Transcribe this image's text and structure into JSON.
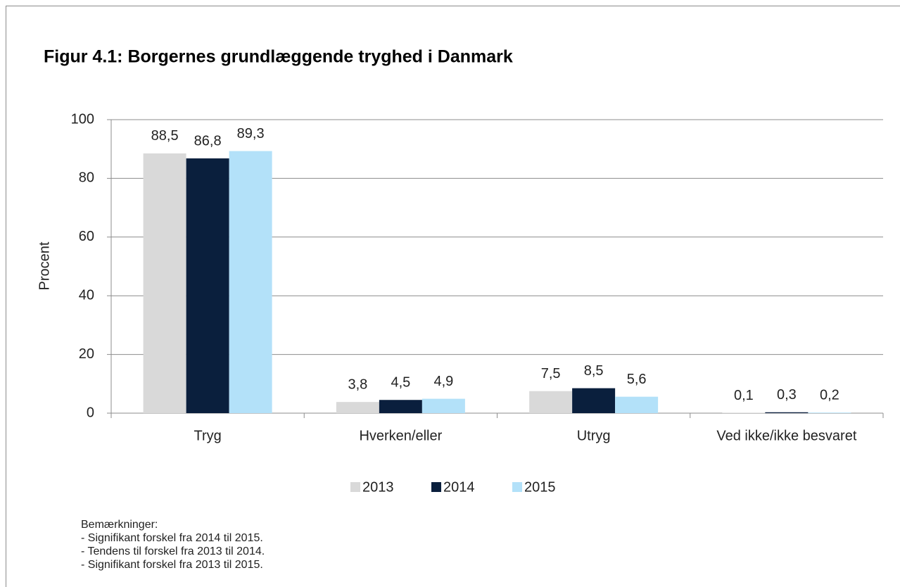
{
  "chart_data": {
    "type": "bar",
    "title": "Figur 4.1: Borgernes grundlæggende tryghed i Danmark",
    "y_label": "Procent",
    "categories": [
      "Tryg",
      "Hverken/eller",
      "Utryg",
      "Ved ikke/ikke besvaret"
    ],
    "series": [
      {
        "name": "2013",
        "color": "#d9d9d9",
        "values": [
          88.5,
          3.8,
          7.5,
          0.1
        ],
        "value_labels": [
          "88,5",
          "3,8",
          "7,5",
          "0,1"
        ]
      },
      {
        "name": "2014",
        "color": "#0a1f3d",
        "values": [
          86.8,
          4.5,
          8.5,
          0.3
        ],
        "value_labels": [
          "86,8",
          "4,5",
          "8,5",
          "0,3"
        ]
      },
      {
        "name": "2015",
        "color": "#b3e1f9",
        "values": [
          89.3,
          4.9,
          5.6,
          0.2
        ],
        "value_labels": [
          "89,3",
          "4,9",
          "5,6",
          "0,2"
        ]
      }
    ],
    "ylim": [
      0,
      100
    ],
    "yticks": [
      0,
      20,
      40,
      60,
      80,
      100
    ],
    "grid": true,
    "legend": "bottom",
    "notes": [
      "Bemærkninger:",
      "- Signifikant forskel fra 2014 til 2015.",
      "- Tendens til forskel fra 2013 til 2014.",
      "- Signifikant forskel fra 2013 til 2015."
    ]
  }
}
